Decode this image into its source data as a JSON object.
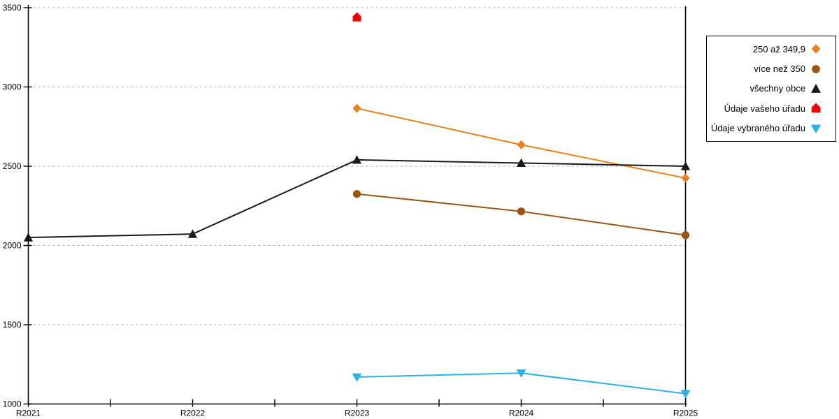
{
  "chart_data": {
    "type": "line",
    "title": "",
    "xlabel": "",
    "ylabel": "",
    "x_categories": [
      "R2021",
      "R2022",
      "R2023",
      "R2024",
      "R2025"
    ],
    "y_ticks": [
      1000,
      1500,
      2000,
      2500,
      3000,
      3500
    ],
    "y_tick_labels": [
      "1000",
      "1500",
      "2000",
      "2500",
      "3000",
      "3500"
    ],
    "ylim": [
      1000,
      3500
    ],
    "grid": "horizontal-dashed",
    "grid_color": "#ababab",
    "axis_color": "#000000",
    "legend_position": "right-outside",
    "has_x_minor_ticks": true,
    "series": [
      {
        "name": "250 až 349,9",
        "marker": "diamond",
        "color": "#e8821e",
        "x": [
          "R2023",
          "R2024",
          "R2025"
        ],
        "y": [
          2865,
          2635,
          2425
        ]
      },
      {
        "name": "více než 350",
        "marker": "circle",
        "color": "#9c5413",
        "x": [
          "R2023",
          "R2024",
          "R2025"
        ],
        "y": [
          2325,
          2215,
          2065
        ]
      },
      {
        "name": "všechny obce",
        "marker": "triangle-up",
        "color": "#1a1a1a",
        "x": [
          "R2021",
          "R2022",
          "R2023",
          "R2024",
          "R2025"
        ],
        "y": [
          2050,
          2072,
          2540,
          2520,
          2500
        ]
      },
      {
        "name": "Údaje vašeho úřadu",
        "marker": "pentagon",
        "color": "#f20000",
        "x": [
          "R2023"
        ],
        "y": [
          3440
        ]
      },
      {
        "name": "Údaje vybraného úřadu",
        "marker": "triangle-down",
        "color": "#29b2e8",
        "x": [
          "R2023",
          "R2024",
          "R2025"
        ],
        "y": [
          1170,
          1195,
          1065
        ]
      }
    ]
  }
}
